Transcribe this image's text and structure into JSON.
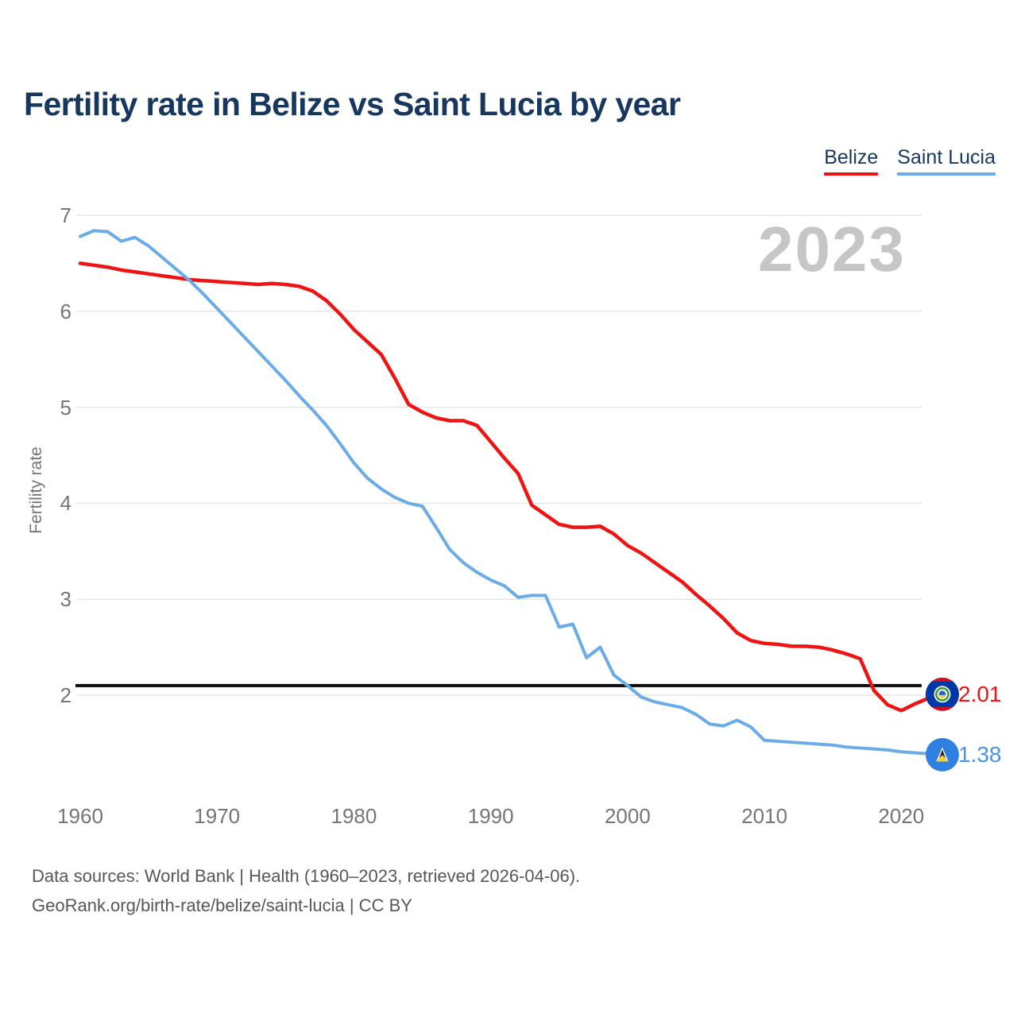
{
  "title": "Fertility rate in Belize vs Saint Lucia by year",
  "watermark_year": "2023",
  "legend": {
    "items": [
      {
        "label": "Belize",
        "color": "#ee1414"
      },
      {
        "label": "Saint Lucia",
        "color": "#6aabe8"
      }
    ]
  },
  "y_axis": {
    "label": "Fertility rate",
    "ticks": [
      7,
      6,
      5,
      4,
      3,
      2
    ]
  },
  "x_axis": {
    "ticks": [
      1960,
      1970,
      1980,
      1990,
      2000,
      2010,
      2020
    ]
  },
  "reference_line": {
    "value": 2.1,
    "color": "#0b0b0b"
  },
  "end_labels": {
    "belize": "2.01",
    "saint_lucia": "1.38"
  },
  "footer": {
    "line1": "Data sources: World Bank | Health (1960–2023, retrieved 2026-04-06).",
    "line2": "GeoRank.org/birth-rate/belize/saint-lucia | CC BY"
  },
  "chart_data": {
    "type": "line",
    "title": "Fertility rate in Belize vs Saint Lucia by year",
    "xlabel": "",
    "ylabel": "Fertility rate",
    "ylim": [
      1.2,
      7
    ],
    "xlim": [
      1960,
      2023
    ],
    "grid": "horizontal",
    "legend_position": "top-right",
    "x": [
      1960,
      1961,
      1962,
      1963,
      1964,
      1965,
      1966,
      1967,
      1968,
      1969,
      1970,
      1971,
      1972,
      1973,
      1974,
      1975,
      1976,
      1977,
      1978,
      1979,
      1980,
      1981,
      1982,
      1983,
      1984,
      1985,
      1986,
      1987,
      1988,
      1989,
      1990,
      1991,
      1992,
      1993,
      1994,
      1995,
      1996,
      1997,
      1998,
      1999,
      2000,
      2001,
      2002,
      2003,
      2004,
      2005,
      2006,
      2007,
      2008,
      2009,
      2010,
      2011,
      2012,
      2013,
      2014,
      2015,
      2016,
      2017,
      2018,
      2019,
      2020,
      2021,
      2022,
      2023
    ],
    "series": [
      {
        "name": "Belize",
        "color": "#ee1414",
        "label_color": "#ee1414",
        "end_value": 2.01,
        "values": [
          6.5,
          6.48,
          6.46,
          6.43,
          6.41,
          6.39,
          6.37,
          6.35,
          6.33,
          6.32,
          6.31,
          6.3,
          6.29,
          6.28,
          6.29,
          6.28,
          6.26,
          6.21,
          6.11,
          5.97,
          5.81,
          5.68,
          5.55,
          5.3,
          5.03,
          4.95,
          4.89,
          4.86,
          4.86,
          4.81,
          4.64,
          4.47,
          4.31,
          3.98,
          3.88,
          3.78,
          3.75,
          3.75,
          3.76,
          3.68,
          3.56,
          3.48,
          3.38,
          3.28,
          3.18,
          3.05,
          2.93,
          2.8,
          2.65,
          2.57,
          2.54,
          2.53,
          2.51,
          2.51,
          2.5,
          2.47,
          2.43,
          2.38,
          2.05,
          1.9,
          1.84,
          1.91,
          1.97,
          2.01
        ]
      },
      {
        "name": "Saint Lucia",
        "color": "#6aabe8",
        "label_color": "#4a94e8",
        "end_value": 1.38,
        "values": [
          6.78,
          6.84,
          6.83,
          6.73,
          6.77,
          6.68,
          6.56,
          6.44,
          6.32,
          6.18,
          6.03,
          5.88,
          5.73,
          5.58,
          5.43,
          5.28,
          5.12,
          4.97,
          4.81,
          4.62,
          4.42,
          4.26,
          4.15,
          4.06,
          4.0,
          3.97,
          3.75,
          3.52,
          3.38,
          3.28,
          3.2,
          3.14,
          3.02,
          3.04,
          3.04,
          2.71,
          2.74,
          2.39,
          2.5,
          2.21,
          2.1,
          1.98,
          1.93,
          1.9,
          1.87,
          1.8,
          1.7,
          1.68,
          1.74,
          1.67,
          1.53,
          1.52,
          1.51,
          1.5,
          1.49,
          1.48,
          1.46,
          1.45,
          1.44,
          1.43,
          1.41,
          1.4,
          1.39,
          1.38
        ]
      }
    ]
  }
}
